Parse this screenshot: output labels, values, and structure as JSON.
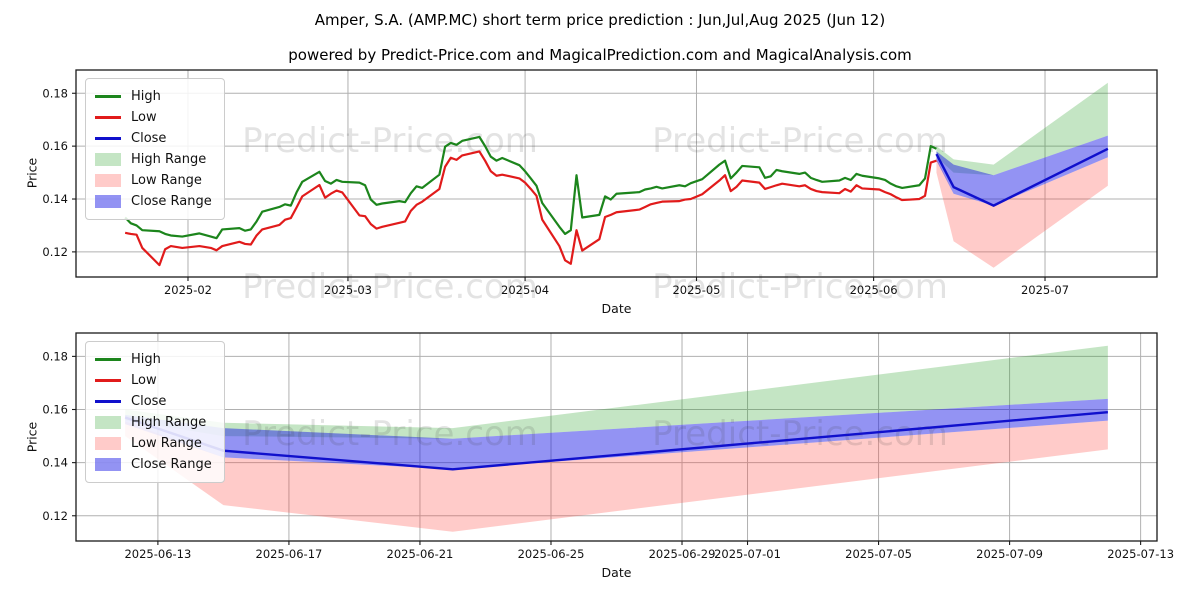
{
  "title": "Amper, S.A. (AMP.MC) short term price prediction : Jun,Jul,Aug 2025 (Jun 12)",
  "subtitle": "powered by Predict-Price.com and MagicalPrediction.com and MagicalAnalysis.com",
  "watermark_text": "Predict-Price.com",
  "colors": {
    "high": "#1c851c",
    "low": "#e11b1b",
    "close": "#1010cc",
    "high_range": "rgba(44,160,44,0.28)",
    "low_range": "rgba(255,70,60,0.28)",
    "close_range": "rgba(25,25,230,0.47)",
    "grid": "#b0b0b0",
    "spine": "#1a1a1a",
    "tick_text": "#111111",
    "watermark": "rgba(60,60,60,0.14)"
  },
  "legend": [
    {
      "label": "High",
      "swatch": "line",
      "color_key": "high"
    },
    {
      "label": "Low",
      "swatch": "line",
      "color_key": "low"
    },
    {
      "label": "Close",
      "swatch": "line",
      "color_key": "close"
    },
    {
      "label": "High Range",
      "swatch": "patch",
      "color_key": "high_range"
    },
    {
      "label": "Low Range",
      "swatch": "patch",
      "color_key": "low_range"
    },
    {
      "label": "Close Range",
      "swatch": "patch",
      "color_key": "close_range"
    }
  ],
  "chart_data": [
    {
      "type": "line",
      "name": "history-and-prediction-chart",
      "xlabel": "Date",
      "ylabel": "Price",
      "grid": true,
      "legend_position": "upper-left",
      "ylim": [
        0.1105,
        0.1888
      ],
      "yticks": [
        0.12,
        0.14,
        0.16,
        0.18
      ],
      "xticks": [
        {
          "date": "2025-02-01",
          "label": "2025-02"
        },
        {
          "date": "2025-03-01",
          "label": "2025-03"
        },
        {
          "date": "2025-04-01",
          "label": "2025-04"
        },
        {
          "date": "2025-05-01",
          "label": "2025-05"
        },
        {
          "date": "2025-06-01",
          "label": "2025-06"
        },
        {
          "date": "2025-07-01",
          "label": "2025-07"
        }
      ],
      "history": {
        "dates": [
          "2025-01-21",
          "2025-01-22",
          "2025-01-23",
          "2025-01-24",
          "2025-01-27",
          "2025-01-28",
          "2025-01-29",
          "2025-01-31",
          "2025-02-03",
          "2025-02-05",
          "2025-02-06",
          "2025-02-07",
          "2025-02-10",
          "2025-02-11",
          "2025-02-12",
          "2025-02-13",
          "2025-02-14",
          "2025-02-17",
          "2025-02-18",
          "2025-02-19",
          "2025-02-20",
          "2025-02-21",
          "2025-02-24",
          "2025-02-25",
          "2025-02-26",
          "2025-02-27",
          "2025-02-28",
          "2025-03-03",
          "2025-03-04",
          "2025-03-05",
          "2025-03-06",
          "2025-03-07",
          "2025-03-10",
          "2025-03-11",
          "2025-03-12",
          "2025-03-13",
          "2025-03-14",
          "2025-03-17",
          "2025-03-18",
          "2025-03-19",
          "2025-03-20",
          "2025-03-21",
          "2025-03-24",
          "2025-03-25",
          "2025-03-26",
          "2025-03-27",
          "2025-03-28",
          "2025-03-31",
          "2025-04-01",
          "2025-04-02",
          "2025-04-03",
          "2025-04-04",
          "2025-04-07",
          "2025-04-08",
          "2025-04-09",
          "2025-04-10",
          "2025-04-11",
          "2025-04-14",
          "2025-04-15",
          "2025-04-16",
          "2025-04-17",
          "2025-04-21",
          "2025-04-22",
          "2025-04-23",
          "2025-04-24",
          "2025-04-25",
          "2025-04-28",
          "2025-04-29",
          "2025-04-30",
          "2025-05-02",
          "2025-05-05",
          "2025-05-06",
          "2025-05-07",
          "2025-05-08",
          "2025-05-09",
          "2025-05-12",
          "2025-05-13",
          "2025-05-14",
          "2025-05-15",
          "2025-05-16",
          "2025-05-19",
          "2025-05-20",
          "2025-05-21",
          "2025-05-22",
          "2025-05-23",
          "2025-05-26",
          "2025-05-27",
          "2025-05-28",
          "2025-05-29",
          "2025-05-30",
          "2025-06-02",
          "2025-06-03",
          "2025-06-04",
          "2025-06-05",
          "2025-06-06",
          "2025-06-09",
          "2025-06-10",
          "2025-06-11",
          "2025-06-12"
        ],
        "high": [
          0.133,
          0.1308,
          0.13,
          0.1282,
          0.1278,
          0.1268,
          0.1262,
          0.1258,
          0.127,
          0.1258,
          0.1252,
          0.1285,
          0.129,
          0.128,
          0.1285,
          0.1315,
          0.1352,
          0.137,
          0.138,
          0.1375,
          0.1425,
          0.1465,
          0.1503,
          0.1468,
          0.1458,
          0.1472,
          0.1465,
          0.1462,
          0.1452,
          0.1398,
          0.1378,
          0.1383,
          0.1392,
          0.1388,
          0.1422,
          0.1448,
          0.1442,
          0.1492,
          0.1598,
          0.1612,
          0.1605,
          0.162,
          0.1635,
          0.16,
          0.156,
          0.1545,
          0.1555,
          0.1528,
          0.1505,
          0.1478,
          0.145,
          0.1385,
          0.1295,
          0.1268,
          0.1282,
          0.149,
          0.133,
          0.134,
          0.141,
          0.1398,
          0.142,
          0.1426,
          0.1436,
          0.144,
          0.1446,
          0.144,
          0.1452,
          0.1448,
          0.146,
          0.1475,
          0.153,
          0.1545,
          0.1478,
          0.15,
          0.1525,
          0.152,
          0.148,
          0.1486,
          0.151,
          0.1505,
          0.1495,
          0.15,
          0.148,
          0.1472,
          0.1465,
          0.147,
          0.148,
          0.1472,
          0.1495,
          0.1488,
          0.1478,
          0.1472,
          0.1458,
          0.1448,
          0.1442,
          0.1452,
          0.1478,
          0.16,
          0.159
        ],
        "low": [
          0.1272,
          0.1268,
          0.1265,
          0.1215,
          0.115,
          0.121,
          0.1222,
          0.1215,
          0.1222,
          0.1215,
          0.1206,
          0.1222,
          0.1238,
          0.123,
          0.1228,
          0.1262,
          0.1285,
          0.1302,
          0.1322,
          0.1328,
          0.1368,
          0.141,
          0.1453,
          0.1405,
          0.142,
          0.1432,
          0.1425,
          0.1338,
          0.1335,
          0.1305,
          0.1288,
          0.1295,
          0.131,
          0.1315,
          0.1355,
          0.1378,
          0.139,
          0.1438,
          0.1522,
          0.1556,
          0.1548,
          0.1565,
          0.158,
          0.1545,
          0.1505,
          0.1488,
          0.1492,
          0.1478,
          0.1462,
          0.1438,
          0.1412,
          0.1322,
          0.1222,
          0.1168,
          0.1155,
          0.1282,
          0.1205,
          0.1248,
          0.1332,
          0.134,
          0.135,
          0.136,
          0.137,
          0.138,
          0.1385,
          0.139,
          0.1392,
          0.1398,
          0.14,
          0.1418,
          0.147,
          0.149,
          0.143,
          0.1446,
          0.147,
          0.1462,
          0.1438,
          0.1445,
          0.1452,
          0.1458,
          0.1448,
          0.1452,
          0.1438,
          0.143,
          0.1426,
          0.1422,
          0.1438,
          0.1428,
          0.1452,
          0.144,
          0.1436,
          0.1426,
          0.1418,
          0.1406,
          0.1396,
          0.14,
          0.1412,
          0.1538,
          0.1545
        ]
      },
      "prediction": {
        "dates": [
          "2025-06-12",
          "2025-06-15",
          "2025-06-22",
          "2025-07-12"
        ],
        "close": [
          0.157,
          0.1445,
          0.1375,
          0.159
        ],
        "close_range_upper": [
          0.158,
          0.153,
          0.149,
          0.164
        ],
        "close_range_lower": [
          0.1545,
          0.142,
          0.1375,
          0.1558
        ],
        "high_range_upper": [
          0.16,
          0.155,
          0.153,
          0.184
        ],
        "high_range_lower": [
          0.156,
          0.15,
          0.149,
          0.164
        ],
        "low_range_upper": [
          0.1555,
          0.142,
          0.1375,
          0.1558
        ],
        "low_range_lower": [
          0.15,
          0.124,
          0.114,
          0.145
        ]
      }
    },
    {
      "type": "line",
      "name": "prediction-zoom-chart",
      "xlabel": "Date",
      "ylabel": "Price",
      "grid": true,
      "legend_position": "upper-left",
      "ylim": [
        0.1105,
        0.1888
      ],
      "yticks": [
        0.12,
        0.14,
        0.16,
        0.18
      ],
      "xticks": [
        {
          "date": "2025-06-13",
          "label": "2025-06-13"
        },
        {
          "date": "2025-06-17",
          "label": "2025-06-17"
        },
        {
          "date": "2025-06-21",
          "label": "2025-06-21"
        },
        {
          "date": "2025-06-25",
          "label": "2025-06-25"
        },
        {
          "date": "2025-06-29",
          "label": "2025-06-29"
        },
        {
          "date": "2025-07-01",
          "label": "2025-07-01"
        },
        {
          "date": "2025-07-05",
          "label": "2025-07-05"
        },
        {
          "date": "2025-07-09",
          "label": "2025-07-09"
        },
        {
          "date": "2025-07-13",
          "label": "2025-07-13"
        }
      ],
      "prediction": {
        "dates": [
          "2025-06-12",
          "2025-06-15",
          "2025-06-22",
          "2025-07-12"
        ],
        "close": [
          0.157,
          0.1445,
          0.1375,
          0.159
        ],
        "close_range_upper": [
          0.158,
          0.153,
          0.149,
          0.164
        ],
        "close_range_lower": [
          0.1545,
          0.142,
          0.1375,
          0.1558
        ],
        "high_range_upper": [
          0.16,
          0.155,
          0.153,
          0.184
        ],
        "high_range_lower": [
          0.156,
          0.15,
          0.149,
          0.164
        ],
        "low_range_upper": [
          0.1555,
          0.142,
          0.1375,
          0.1558
        ],
        "low_range_lower": [
          0.15,
          0.124,
          0.114,
          0.145
        ]
      }
    }
  ]
}
